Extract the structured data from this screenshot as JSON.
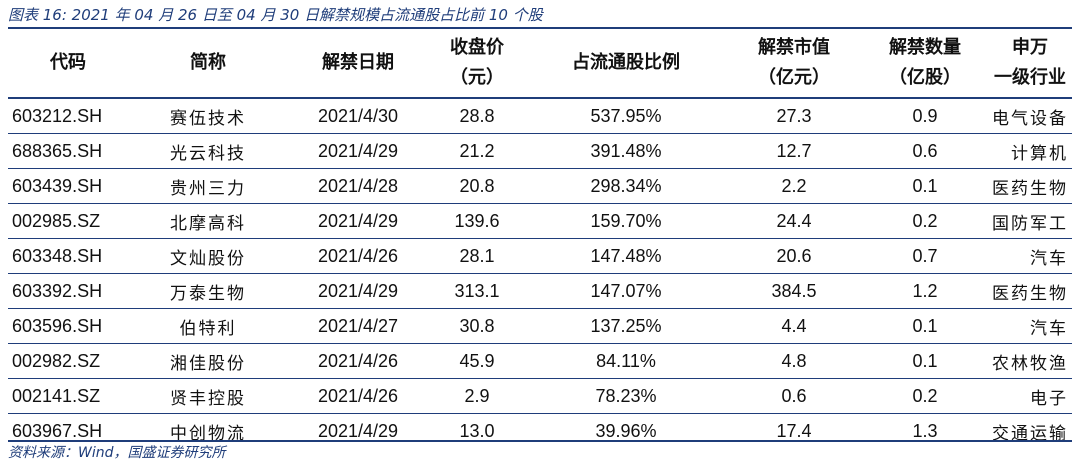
{
  "caption": "图表 16: 2021 年 04 月 26 日至 04 月 30 日解禁规模占流通股占比前 10 个股",
  "headers": [
    {
      "line1": "代码",
      "line2": ""
    },
    {
      "line1": "简称",
      "line2": ""
    },
    {
      "line1": "解禁日期",
      "line2": ""
    },
    {
      "line1": "收盘价",
      "line2": "（元）"
    },
    {
      "line1": "占流通股比例",
      "line2": ""
    },
    {
      "line1": "解禁市值",
      "line2": "（亿元）"
    },
    {
      "line1": "解禁数量",
      "line2": "（亿股）"
    },
    {
      "line1": "申万",
      "line2": "一级行业"
    }
  ],
  "rows": [
    [
      "603212.SH",
      "赛伍技术",
      "2021/4/30",
      "28.8",
      "537.95%",
      "27.3",
      "0.9",
      "电气设备"
    ],
    [
      "688365.SH",
      "光云科技",
      "2021/4/29",
      "21.2",
      "391.48%",
      "12.7",
      "0.6",
      "计算机"
    ],
    [
      "603439.SH",
      "贵州三力",
      "2021/4/28",
      "20.8",
      "298.34%",
      "2.2",
      "0.1",
      "医药生物"
    ],
    [
      "002985.SZ",
      "北摩高科",
      "2021/4/29",
      "139.6",
      "159.70%",
      "24.4",
      "0.2",
      "国防军工"
    ],
    [
      "603348.SH",
      "文灿股份",
      "2021/4/26",
      "28.1",
      "147.48%",
      "20.6",
      "0.7",
      "汽车"
    ],
    [
      "603392.SH",
      "万泰生物",
      "2021/4/29",
      "313.1",
      "147.07%",
      "384.5",
      "1.2",
      "医药生物"
    ],
    [
      "603596.SH",
      "伯特利",
      "2021/4/27",
      "30.8",
      "137.25%",
      "4.4",
      "0.1",
      "汽车"
    ],
    [
      "002982.SZ",
      "湘佳股份",
      "2021/4/26",
      "45.9",
      "84.11%",
      "4.8",
      "0.1",
      "农林牧渔"
    ],
    [
      "002141.SZ",
      "贤丰控股",
      "2021/4/26",
      "2.9",
      "78.23%",
      "0.6",
      "0.2",
      "电子"
    ],
    [
      "603967.SH",
      "中创物流",
      "2021/4/29",
      "13.0",
      "39.96%",
      "17.4",
      "1.3",
      "交通运输"
    ]
  ],
  "source": "资料来源：Wind，国盛证券研究所",
  "colors": {
    "accent": "#1f3d7a",
    "text": "#111111"
  }
}
